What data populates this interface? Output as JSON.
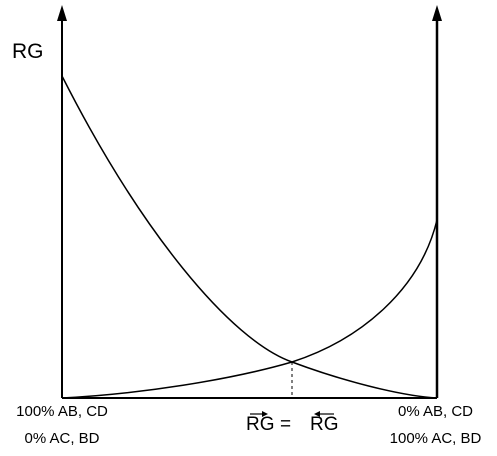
{
  "diagram": {
    "y_axis_label": "RG",
    "left_end": {
      "line1": "100% AB, CD",
      "line2": "0% AC, BD"
    },
    "right_end": {
      "line1": "0% AB, CD",
      "line2": "100% AC, BD"
    },
    "equilibrium": {
      "left": "RG",
      "equals": "=",
      "right": "RG"
    },
    "curves": [
      {
        "id": "decreasing",
        "from": "left",
        "shape": "decaying"
      },
      {
        "id": "increasing",
        "from": "right",
        "shape": "growing"
      }
    ],
    "colors": {
      "line": "#000000",
      "background": "#ffffff"
    }
  }
}
